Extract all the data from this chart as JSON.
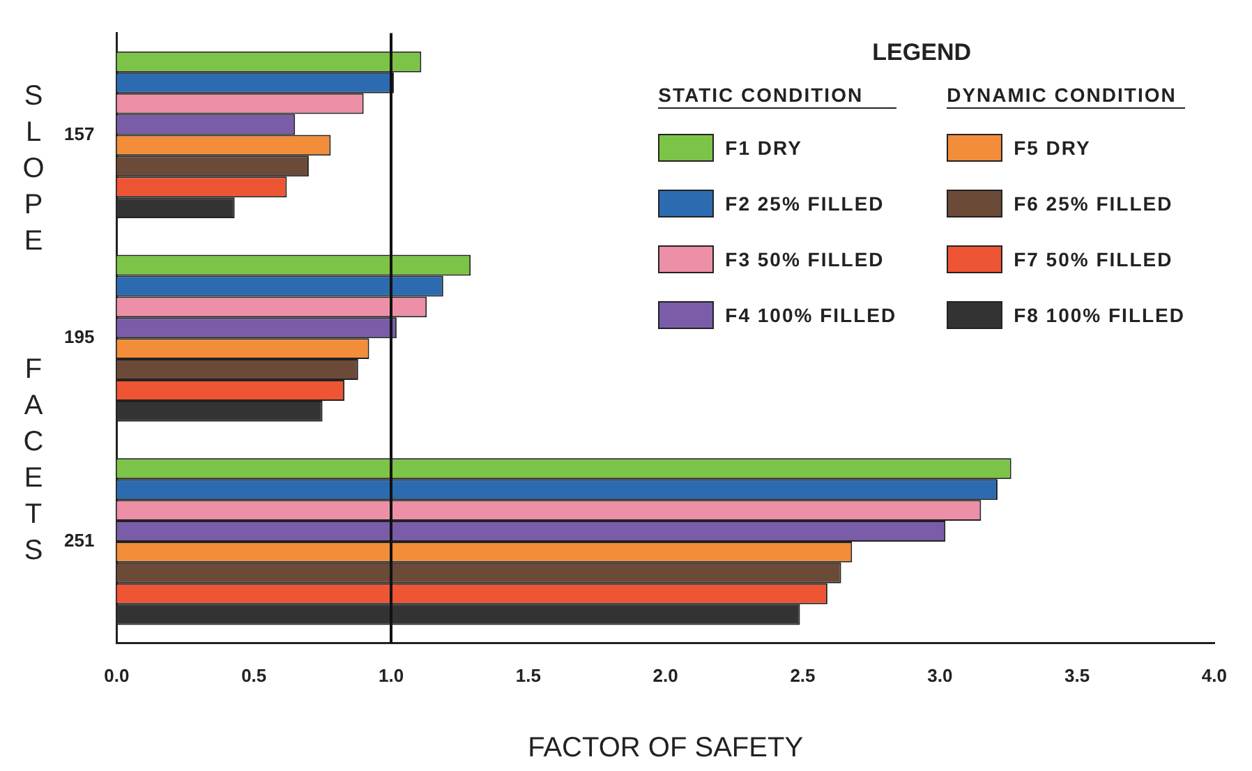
{
  "chart_data": {
    "type": "bar",
    "orientation": "horizontal",
    "xlabel": "FACTOR OF SAFETY",
    "ylabel": "SLOPE FACETS",
    "legend_title": "LEGEND",
    "legend": "top right",
    "annotations": [
      "STATIC CONDITION",
      "DYNAMIC CONDITION"
    ],
    "categories": [
      "157",
      "195",
      "251"
    ],
    "xlim": [
      0,
      4
    ],
    "xticks": [
      {
        "value": 0,
        "label": "0.0"
      },
      {
        "value": 0.5,
        "label": "0.5"
      },
      {
        "value": 1,
        "label": "1.0"
      },
      {
        "value": 1.5,
        "label": "1.5"
      },
      {
        "value": 2,
        "label": "2.0"
      },
      {
        "value": 2.5,
        "label": "2.5"
      },
      {
        "value": 3,
        "label": "3.0"
      },
      {
        "value": 3.5,
        "label": "3.5"
      },
      {
        "value": 4,
        "label": "4.0"
      }
    ],
    "grid": false,
    "ref_lines": [
      {
        "axis": "x",
        "value": 1,
        "color": "#111111"
      }
    ],
    "series": [
      {
        "name": "F1 DRY",
        "color": "#7cc447",
        "values": [
          1.11,
          1.29,
          3.26
        ]
      },
      {
        "name": "F2 25% FILLED",
        "color": "#2c6bb0",
        "values": [
          1.01,
          1.19,
          3.21
        ]
      },
      {
        "name": "F3 50% FILLED",
        "color": "#ee8fa8",
        "values": [
          0.9,
          1.13,
          3.15
        ]
      },
      {
        "name": "F4 100% FILLED",
        "color": "#7a5ca8",
        "values": [
          0.65,
          1.02,
          3.02
        ]
      },
      {
        "name": "F5 DRY",
        "color": "#f28d3a",
        "values": [
          0.78,
          0.92,
          2.68
        ]
      },
      {
        "name": "F6 25% FILLED",
        "color": "#6b4a38",
        "values": [
          0.7,
          0.88,
          2.64
        ]
      },
      {
        "name": "F7 50% FILLED",
        "color": "#ee5535",
        "values": [
          0.62,
          0.83,
          2.59
        ]
      },
      {
        "name": "F8 100% FILLED",
        "color": "#333333",
        "values": [
          0.43,
          0.75,
          2.49
        ]
      }
    ]
  }
}
